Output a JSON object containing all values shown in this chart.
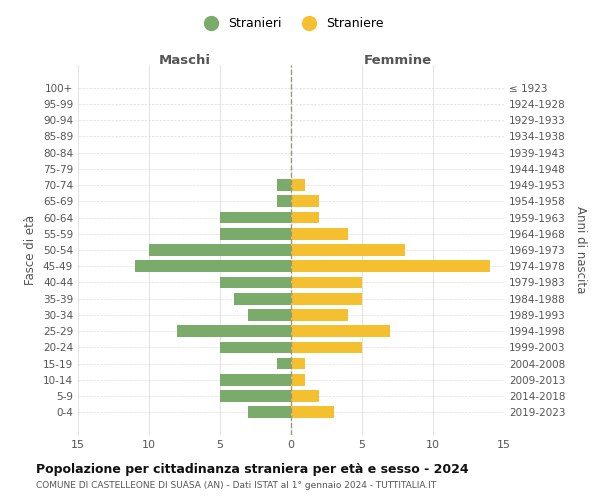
{
  "age_groups": [
    "0-4",
    "5-9",
    "10-14",
    "15-19",
    "20-24",
    "25-29",
    "30-34",
    "35-39",
    "40-44",
    "45-49",
    "50-54",
    "55-59",
    "60-64",
    "65-69",
    "70-74",
    "75-79",
    "80-84",
    "85-89",
    "90-94",
    "95-99",
    "100+"
  ],
  "birth_years": [
    "2019-2023",
    "2014-2018",
    "2009-2013",
    "2004-2008",
    "1999-2003",
    "1994-1998",
    "1989-1993",
    "1984-1988",
    "1979-1983",
    "1974-1978",
    "1969-1973",
    "1964-1968",
    "1959-1963",
    "1954-1958",
    "1949-1953",
    "1944-1948",
    "1939-1943",
    "1934-1938",
    "1929-1933",
    "1924-1928",
    "≤ 1923"
  ],
  "maschi": [
    3,
    5,
    5,
    1,
    5,
    8,
    3,
    4,
    5,
    11,
    10,
    5,
    5,
    1,
    1,
    0,
    0,
    0,
    0,
    0,
    0
  ],
  "femmine": [
    3,
    2,
    1,
    1,
    5,
    7,
    4,
    5,
    5,
    14,
    8,
    4,
    2,
    2,
    1,
    0,
    0,
    0,
    0,
    0,
    0
  ],
  "maschi_color": "#7aab6a",
  "femmine_color": "#f5c030",
  "title": "Popolazione per cittadinanza straniera per età e sesso - 2024",
  "subtitle": "COMUNE DI CASTELLEONE DI SUASA (AN) - Dati ISTAT al 1° gennaio 2024 - TUTTITALIA.IT",
  "xlabel_left": "Maschi",
  "xlabel_right": "Femmine",
  "ylabel_left": "Fasce di età",
  "ylabel_right": "Anni di nascita",
  "xlim": 15,
  "legend_stranieri": "Stranieri",
  "legend_straniere": "Straniere",
  "background_color": "#ffffff",
  "grid_color": "#dddddd"
}
